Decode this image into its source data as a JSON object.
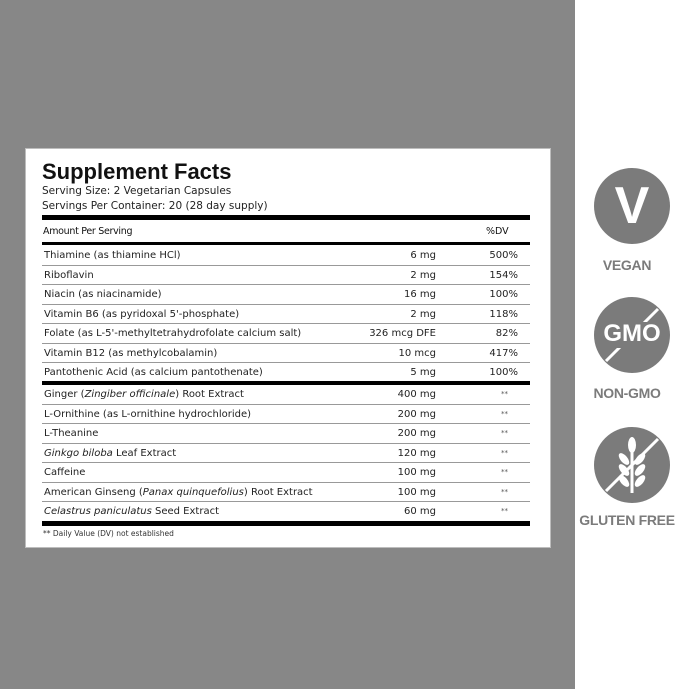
{
  "panel": {
    "title": "Supplement Facts",
    "serving_size": "Serving Size: 2 Vegetarian Capsules",
    "servings_per_container": "Servings Per Container: 20 (28 day supply)",
    "header_amount": "Amount Per Serving",
    "header_dv": "%DV",
    "vitamins": [
      {
        "name": "Thiamine (as thiamine HCl)",
        "amount": "6 mg",
        "dv": "500%"
      },
      {
        "name": "Riboflavin",
        "amount": "2 mg",
        "dv": "154%"
      },
      {
        "name": "Niacin (as niacinamide)",
        "amount": "16 mg",
        "dv": "100%"
      },
      {
        "name": "Vitamin B6 (as pyridoxal 5'-phosphate)",
        "amount": "2 mg",
        "dv": "118%"
      },
      {
        "name": "Folate (as L-5'-methyltetrahydrofolate calcium salt)",
        "amount": "326 mcg DFE",
        "dv": "82%"
      },
      {
        "name": "Vitamin B12 (as methylcobalamin)",
        "amount": "10 mcg",
        "dv": "417%"
      },
      {
        "name": "Pantothenic Acid (as calcium pantothenate)",
        "amount": "5 mg",
        "dv": "100%"
      }
    ],
    "extracts": [
      {
        "pre": "Ginger (",
        "ital": "Zingiber officinale",
        "post": ") Root Extract",
        "amount": "400 mg",
        "dv": "**"
      },
      {
        "pre": "L-Ornithine (as L-ornithine hydrochloride)",
        "ital": "",
        "post": "",
        "amount": "200 mg",
        "dv": "**"
      },
      {
        "pre": "L-Theanine",
        "ital": "",
        "post": "",
        "amount": "200 mg",
        "dv": "**"
      },
      {
        "pre": "",
        "ital": "Ginkgo biloba",
        "post": " Leaf Extract",
        "amount": "120 mg",
        "dv": "**"
      },
      {
        "pre": "Caffeine",
        "ital": "",
        "post": "",
        "amount": "100 mg",
        "dv": "**"
      },
      {
        "pre": "American Ginseng (",
        "ital": "Panax quinquefolius",
        "post": ") Root Extract",
        "amount": "100 mg",
        "dv": "**"
      },
      {
        "pre": "",
        "ital": "Celastrus paniculatus",
        "post": " Seed Extract",
        "amount": "60 mg",
        "dv": "**"
      }
    ],
    "footnote": "** Daily Value (DV) not established"
  },
  "badges": [
    {
      "icon": "v-letter-icon",
      "glyph": "V",
      "label": "VEGAN"
    },
    {
      "icon": "no-gmo-icon",
      "glyph": "GMO",
      "label": "NON-GMO"
    },
    {
      "icon": "no-wheat-icon",
      "glyph": "",
      "label": "GLUTEN FREE"
    }
  ],
  "colors": {
    "background": "#878787",
    "badge": "#7b7b7b"
  }
}
